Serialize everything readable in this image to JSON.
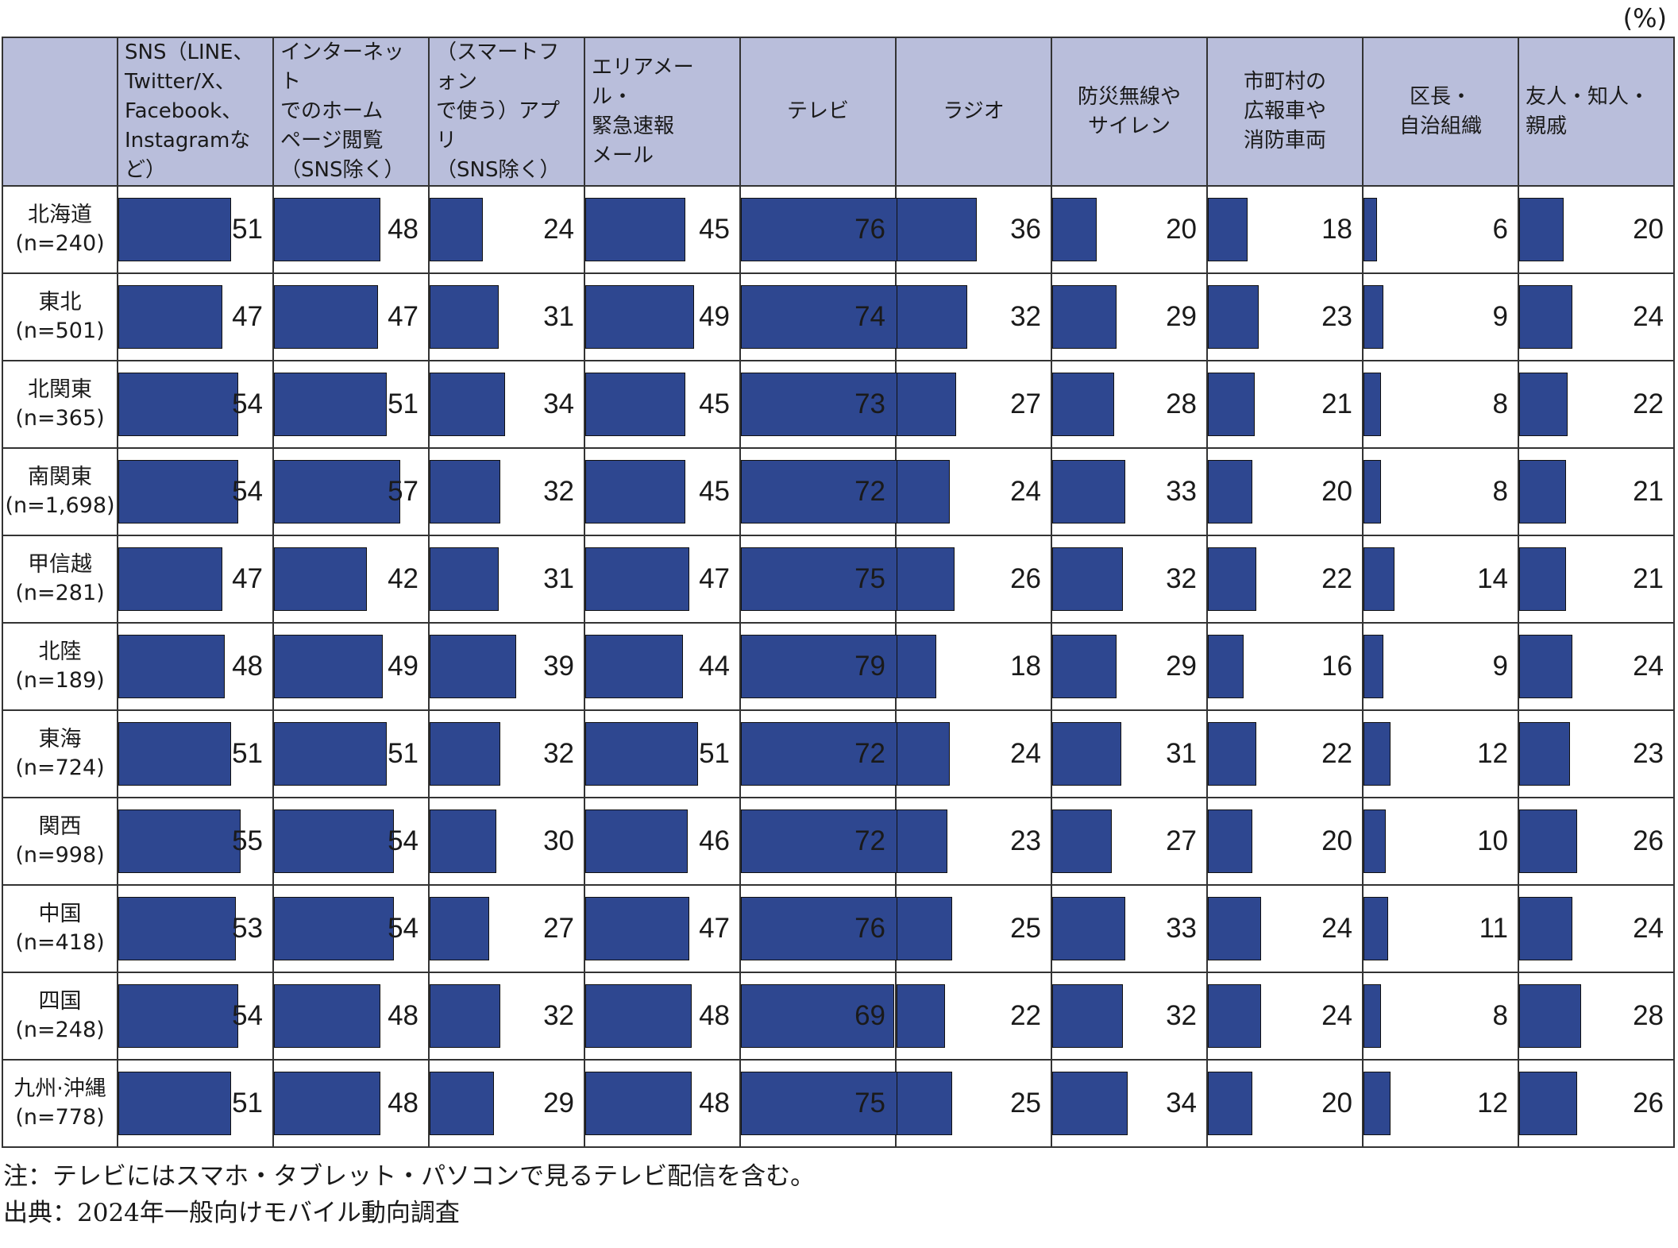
{
  "chart_data": {
    "type": "table",
    "unit": "(%)",
    "columns": [
      "SNS（LINE、\nTwitter/X、\nFacebook、\nInstagramなど）",
      "インターネット\nでのホーム\nページ閲覧\n（SNS除く）",
      "（スマートフォン\nで使う）アプリ\n（SNS除く）",
      "エリアメール・\n緊急速報\nメール",
      "テレビ",
      "ラジオ",
      "防災無線や\nサイレン",
      "市町村の\n広報車や\n消防車両",
      "区長・\n自治組織",
      "友人・知人・\n親戚"
    ],
    "rows": [
      {
        "label": "北海道\n(n=240)",
        "values": [
          51,
          48,
          24,
          45,
          76,
          36,
          20,
          18,
          6,
          20
        ]
      },
      {
        "label": "東北\n(n=501)",
        "values": [
          47,
          47,
          31,
          49,
          74,
          32,
          29,
          23,
          9,
          24
        ]
      },
      {
        "label": "北関東\n(n=365)",
        "values": [
          54,
          51,
          34,
          45,
          73,
          27,
          28,
          21,
          8,
          22
        ]
      },
      {
        "label": "南関東\n(n=1,698)",
        "values": [
          54,
          57,
          32,
          45,
          72,
          24,
          33,
          20,
          8,
          21
        ]
      },
      {
        "label": "甲信越\n(n=281)",
        "values": [
          47,
          42,
          31,
          47,
          75,
          26,
          32,
          22,
          14,
          21
        ]
      },
      {
        "label": "北陸\n(n=189)",
        "values": [
          48,
          49,
          39,
          44,
          79,
          18,
          29,
          16,
          9,
          24
        ]
      },
      {
        "label": "東海\n(n=724)",
        "values": [
          51,
          51,
          32,
          51,
          72,
          24,
          31,
          22,
          12,
          23
        ]
      },
      {
        "label": "関西\n(n=998)",
        "values": [
          55,
          54,
          30,
          46,
          72,
          23,
          27,
          20,
          10,
          26
        ]
      },
      {
        "label": "中国\n(n=418)",
        "values": [
          53,
          54,
          27,
          47,
          76,
          25,
          33,
          24,
          11,
          24
        ]
      },
      {
        "label": "四国\n(n=248)",
        "values": [
          54,
          48,
          32,
          48,
          69,
          22,
          32,
          24,
          8,
          28
        ]
      },
      {
        "label": "九州·沖縄\n(n=778)",
        "values": [
          51,
          48,
          29,
          48,
          75,
          25,
          34,
          20,
          12,
          26
        ]
      }
    ],
    "value_max": 105,
    "bar_color": "#2e4790",
    "header_color": "#b9bedb"
  },
  "notes": {
    "note": "注：テレビにはスマホ・タブレット・パソコンで見るテレビ配信を含む。",
    "source": "出典：2024年一般向けモバイル動向調査"
  }
}
